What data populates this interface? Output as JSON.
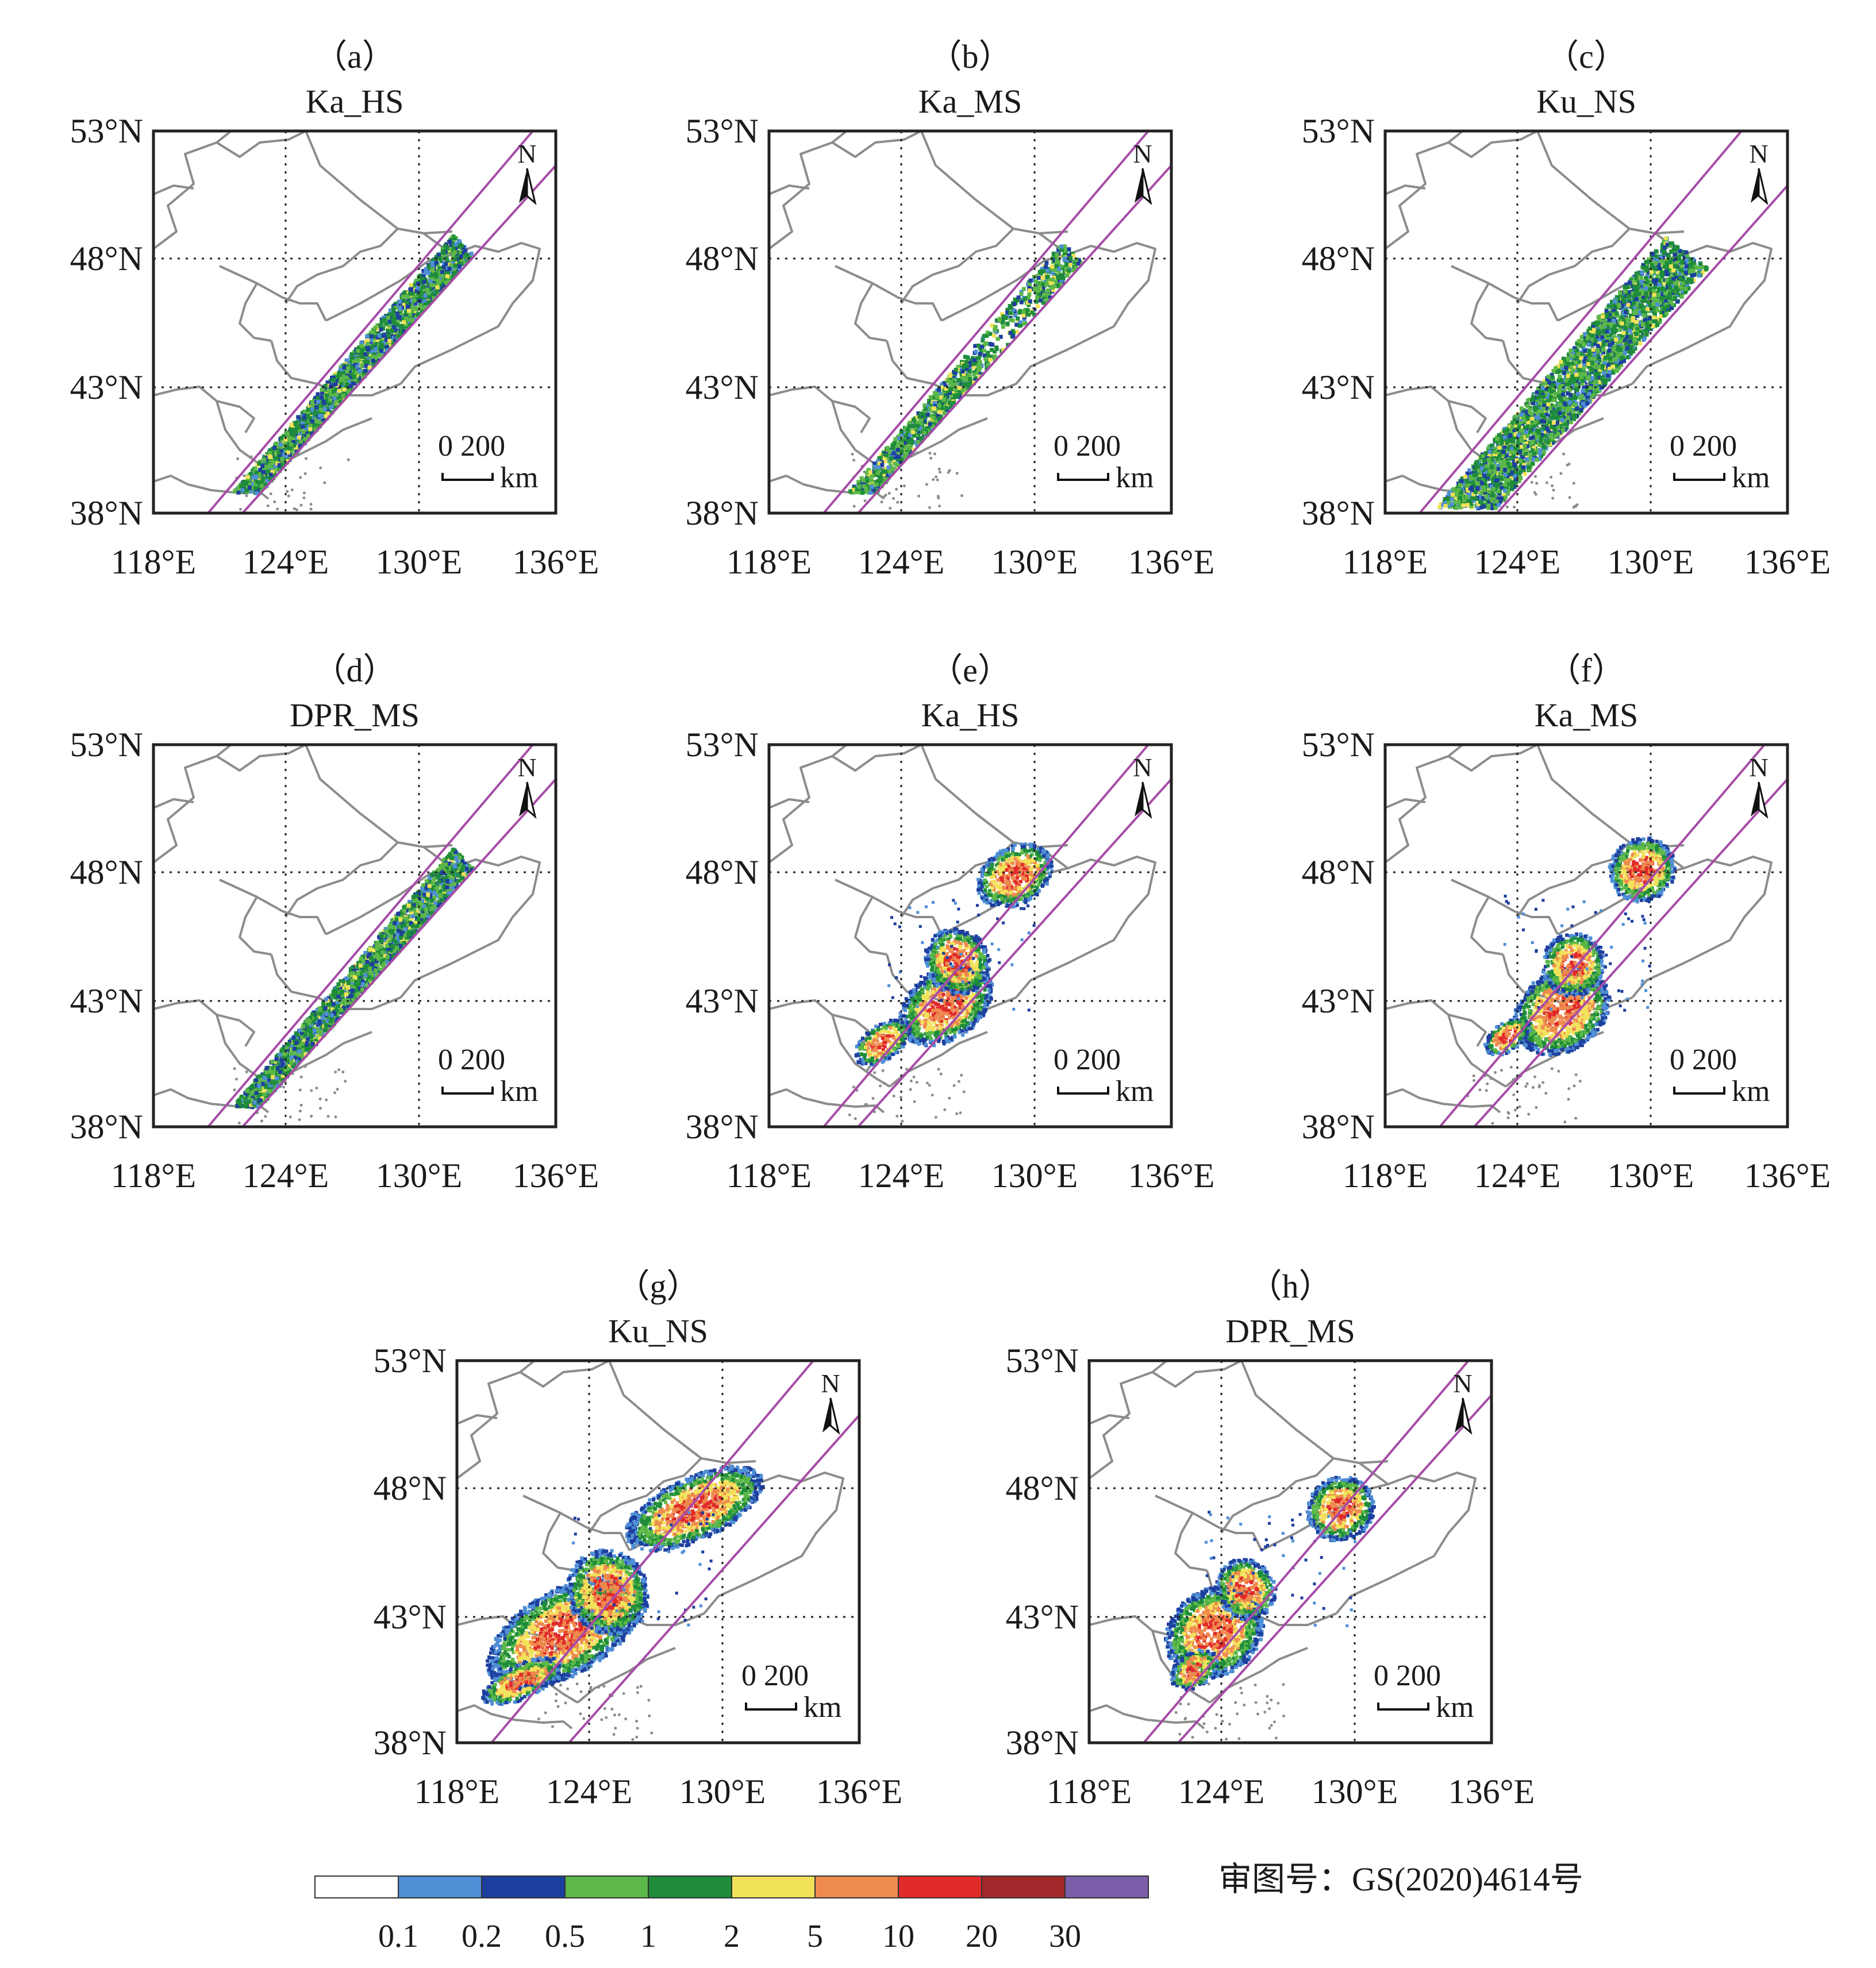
{
  "lat_labels": [
    "53°N",
    "48°N",
    "43°N",
    "38°N"
  ],
  "lon_labels": [
    "118°E",
    "124°E",
    "130°E",
    "136°E"
  ],
  "north_label": "N",
  "scale_bar": {
    "values": "0  200",
    "unit": "km"
  },
  "panels": [
    {
      "letter": "（a）",
      "title": "Ka_HS",
      "product": "total",
      "swath": "narrow"
    },
    {
      "letter": "（b）",
      "title": "Ka_MS",
      "product": "total",
      "swath": "narrow"
    },
    {
      "letter": "（c）",
      "title": "Ku_NS",
      "product": "total",
      "swath": "wide"
    },
    {
      "letter": "（d）",
      "title": "DPR_MS",
      "product": "total",
      "swath": "narrow"
    },
    {
      "letter": "（e）",
      "title": "Ka_HS",
      "product": "heavy",
      "swath": "narrow"
    },
    {
      "letter": "（f）",
      "title": "Ka_MS",
      "product": "heavy",
      "swath": "narrow"
    },
    {
      "letter": "（g）",
      "title": "Ku_NS",
      "product": "heavy",
      "swath": "wide"
    },
    {
      "letter": "（h）",
      "title": "DPR_MS",
      "product": "heavy",
      "swath": "narrow"
    }
  ],
  "colorbar": {
    "tick_labels": [
      "0.1",
      "0.2",
      "0.5",
      "1",
      "2",
      "5",
      "10",
      "20",
      "30"
    ],
    "colors": [
      "#ffffff",
      "#4f8fd6",
      "#1d3f9e",
      "#5cb848",
      "#1e8c3a",
      "#f2e25a",
      "#ee8a4e",
      "#e12a2a",
      "#a0282a",
      "#7a5eaa"
    ]
  },
  "approval_number": "审图号：GS(2020)4614号",
  "colors": {
    "swath_edge": "#a64ca6",
    "boundary": "#8c8c8c",
    "grid": "#222222",
    "frame": "#222222"
  }
}
